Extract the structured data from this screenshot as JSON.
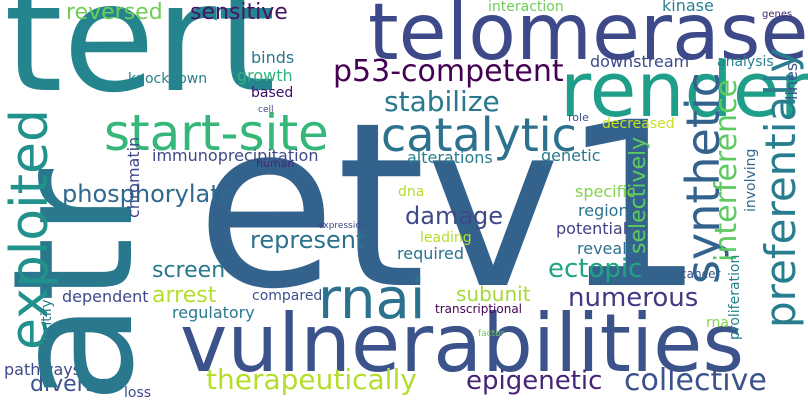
{
  "words": [
    {
      "id": "etv1",
      "text": "etv1",
      "color": "#33638d"
    },
    {
      "id": "atr",
      "text": "atr",
      "color": "#2a788e"
    },
    {
      "id": "tert",
      "text": "tert",
      "color": "#25858e"
    },
    {
      "id": "telomerase",
      "text": "telomerase",
      "color": "#3e4989"
    },
    {
      "id": "vulnerabilities",
      "text": "vulnerabilities",
      "color": "#3b528b"
    },
    {
      "id": "render",
      "text": "render",
      "color": "#1f9e89"
    },
    {
      "id": "start-site",
      "text": "start-site",
      "color": "#35b779"
    },
    {
      "id": "catalytic",
      "text": "catalytic",
      "color": "#2c728e"
    },
    {
      "id": "exploited",
      "text": "exploited",
      "color": "#21918c"
    },
    {
      "id": "p53-competent",
      "text": "p53-competent",
      "color": "#440154"
    },
    {
      "id": "rnai",
      "text": "rnai",
      "color": "#2c728e"
    },
    {
      "id": "synthetic",
      "text": "synthetic",
      "color": "#33638d"
    },
    {
      "id": "stabilize",
      "text": "stabilize",
      "color": "#2a788e"
    },
    {
      "id": "preferentially",
      "text": "preferentially",
      "color": "#287d8e"
    },
    {
      "id": "collective",
      "text": "collective",
      "color": "#3b528b"
    },
    {
      "id": "therapeutically",
      "text": "therapeutically",
      "color": "#b5de2b"
    },
    {
      "id": "epigenetic",
      "text": "epigenetic",
      "color": "#482475"
    },
    {
      "id": "numerous",
      "text": "numerous",
      "color": "#443983"
    },
    {
      "id": "interference",
      "text": "interference",
      "color": "#5ec962"
    },
    {
      "id": "phosphorylate",
      "text": "phosphorylate",
      "color": "#31688e"
    },
    {
      "id": "represent",
      "text": "represent",
      "color": "#2c728e"
    },
    {
      "id": "reversed",
      "text": "reversed",
      "color": "#6ece58"
    },
    {
      "id": "sensitive",
      "text": "sensitive",
      "color": "#471365"
    },
    {
      "id": "damage",
      "text": "damage",
      "color": "#3e4989"
    },
    {
      "id": "ectopic",
      "text": "ectopic",
      "color": "#20a486"
    },
    {
      "id": "subunit",
      "text": "subunit",
      "color": "#a5db36"
    },
    {
      "id": "arrest",
      "text": "arrest",
      "color": "#b5de2b"
    },
    {
      "id": "screen",
      "text": "screen",
      "color": "#2a788e"
    },
    {
      "id": "diverse",
      "text": "diverse",
      "color": "#3b528b"
    },
    {
      "id": "selectively",
      "text": "selectively",
      "color": "#5ec962"
    },
    {
      "id": "immunoprecipitation",
      "text": "immunoprecipitation",
      "color": "#3e4989"
    },
    {
      "id": "alterations",
      "text": "alterations",
      "color": "#287d8e"
    },
    {
      "id": "genetic",
      "text": "genetic",
      "color": "#2a788e"
    },
    {
      "id": "specific",
      "text": "specific",
      "color": "#84d44b"
    },
    {
      "id": "region",
      "text": "region",
      "color": "#2c728e"
    },
    {
      "id": "potential",
      "text": "potential",
      "color": "#424086"
    },
    {
      "id": "reveals",
      "text": "reveals",
      "color": "#2c728e"
    },
    {
      "id": "required",
      "text": "required",
      "color": "#2c728e"
    },
    {
      "id": "leading",
      "text": "leading",
      "color": "#b5de2b"
    },
    {
      "id": "dna",
      "text": "dna",
      "color": "#b5de2b"
    },
    {
      "id": "decreased",
      "text": "decreased",
      "color": "#c8e020"
    },
    {
      "id": "chromatin",
      "text": "chromatin",
      "color": "#3e4989"
    },
    {
      "id": "human",
      "text": "human",
      "color": "#482878"
    },
    {
      "id": "role",
      "text": "role",
      "color": "#3b528b"
    },
    {
      "id": "binds",
      "text": "binds",
      "color": "#2a788e"
    },
    {
      "id": "growth",
      "text": "growth",
      "color": "#2fb47c"
    },
    {
      "id": "based",
      "text": "based",
      "color": "#3b0f70"
    },
    {
      "id": "cell",
      "text": "cell",
      "color": "#3e4989"
    },
    {
      "id": "knockdown",
      "text": "knockdown",
      "color": "#26828e"
    },
    {
      "id": "interaction",
      "text": "interaction",
      "color": "#6ece58"
    },
    {
      "id": "downstream",
      "text": "downstream",
      "color": "#3e4989"
    },
    {
      "id": "analysis",
      "text": "analysis",
      "color": "#26828e"
    },
    {
      "id": "kinase",
      "text": "kinase",
      "color": "#26828e"
    },
    {
      "id": "genes",
      "text": "genes",
      "color": "#482475"
    },
    {
      "id": "lines",
      "text": "lines",
      "color": "#3b528b"
    },
    {
      "id": "cancer",
      "text": "cancer",
      "color": "#3b528b"
    },
    {
      "id": "proliferation",
      "text": "proliferation",
      "color": "#26828e"
    },
    {
      "id": "involving",
      "text": "involving",
      "color": "#31688e"
    },
    {
      "id": "expression",
      "text": "expression",
      "color": "#3e4989"
    },
    {
      "id": "transcriptional",
      "text": "transcriptional",
      "color": "#440154"
    },
    {
      "id": "factor",
      "text": "factor",
      "color": "#6ece58"
    },
    {
      "id": "rna",
      "text": "rna",
      "color": "#84d44b"
    },
    {
      "id": "compared",
      "text": "compared",
      "color": "#3b528b"
    },
    {
      "id": "regulatory",
      "text": "regulatory",
      "color": "#2a788e"
    },
    {
      "id": "dependent",
      "text": "dependent",
      "color": "#3e4989"
    },
    {
      "id": "identify",
      "text": "identify",
      "color": "#2a788e"
    },
    {
      "id": "pathways",
      "text": "pathways",
      "color": "#3e4989"
    },
    {
      "id": "loss",
      "text": "loss",
      "color": "#3e4989"
    }
  ]
}
